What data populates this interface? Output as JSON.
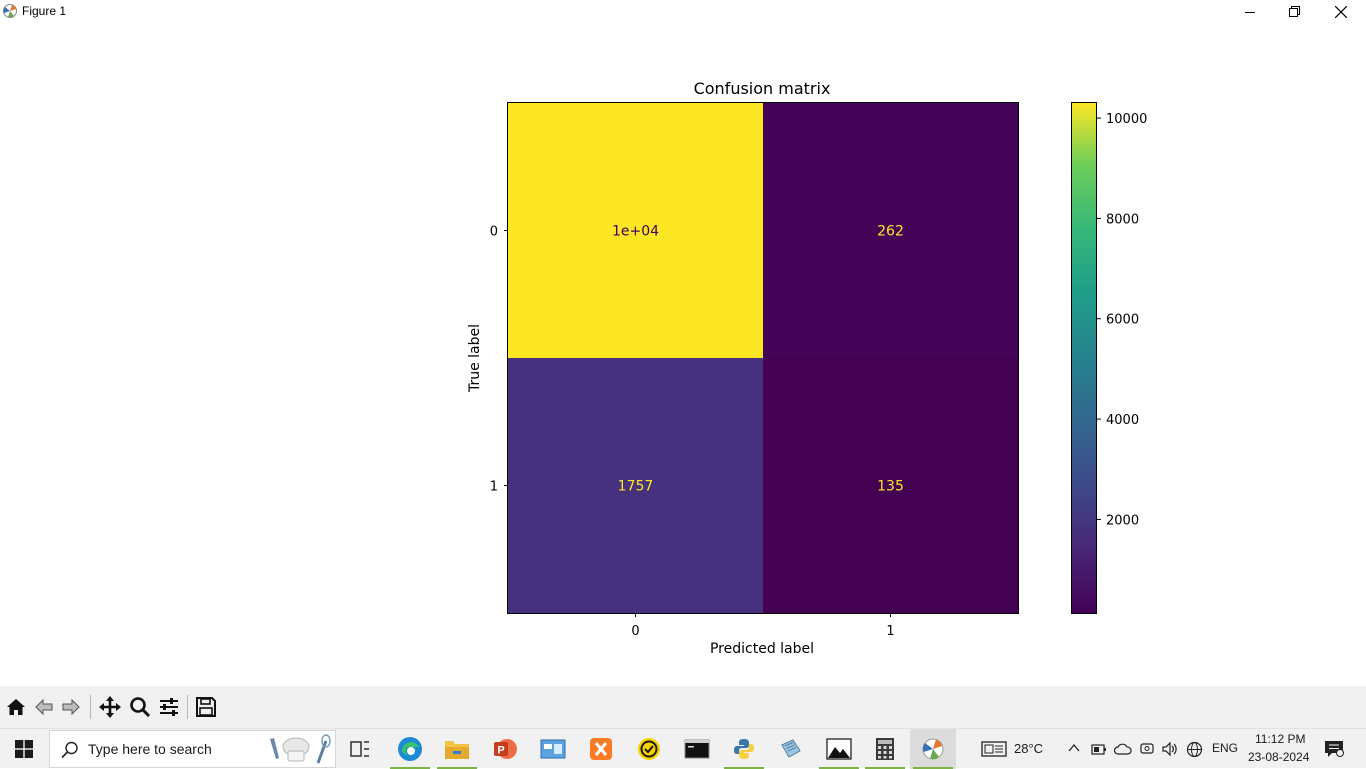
{
  "window": {
    "title": "Figure 1",
    "icon": "matplotlib-icon",
    "controls": [
      "minimize-icon",
      "restore-icon",
      "close-icon"
    ]
  },
  "chart_data": {
    "type": "heatmap",
    "title": "Confusion matrix",
    "xlabel": "Predicted label",
    "ylabel": "True label",
    "x_categories": [
      "0",
      "1"
    ],
    "y_categories": [
      "0",
      "1"
    ],
    "values": [
      [
        10300,
        262
      ],
      [
        1757,
        135
      ]
    ],
    "cell_labels": [
      [
        "1e+04",
        "262"
      ],
      [
        "1757",
        "135"
      ]
    ],
    "colormap": "viridis",
    "colorbar": {
      "vmin": 135,
      "vmax": 10300,
      "ticks": [
        2000,
        4000,
        6000,
        8000,
        10000
      ]
    },
    "label_colors": {
      "on_bright": "#440154",
      "on_dark": "#fde725"
    }
  },
  "toolbar": {
    "buttons": [
      "home-icon",
      "back-icon",
      "forward-icon",
      "pan-icon",
      "zoom-icon",
      "configure-icon",
      "save-icon"
    ]
  },
  "taskbar": {
    "search_placeholder": "Type here to search",
    "apps": [
      "task-view-icon",
      "edge-icon",
      "file-explorer-icon",
      "powerpoint-icon",
      "control-panel-icon",
      "xampp-icon",
      "sticky-app-icon",
      "terminal-icon",
      "python-icon",
      "notepad-icon",
      "photos-icon",
      "calculator-icon",
      "matplotlib-figure-icon"
    ],
    "weather": "28°C",
    "language": "ENG",
    "time": "11:12 PM",
    "date": "23-08-2024"
  },
  "colors": {
    "accent_running": "#7cb342",
    "viridis_high": "#fde725",
    "viridis_low": "#440154"
  }
}
